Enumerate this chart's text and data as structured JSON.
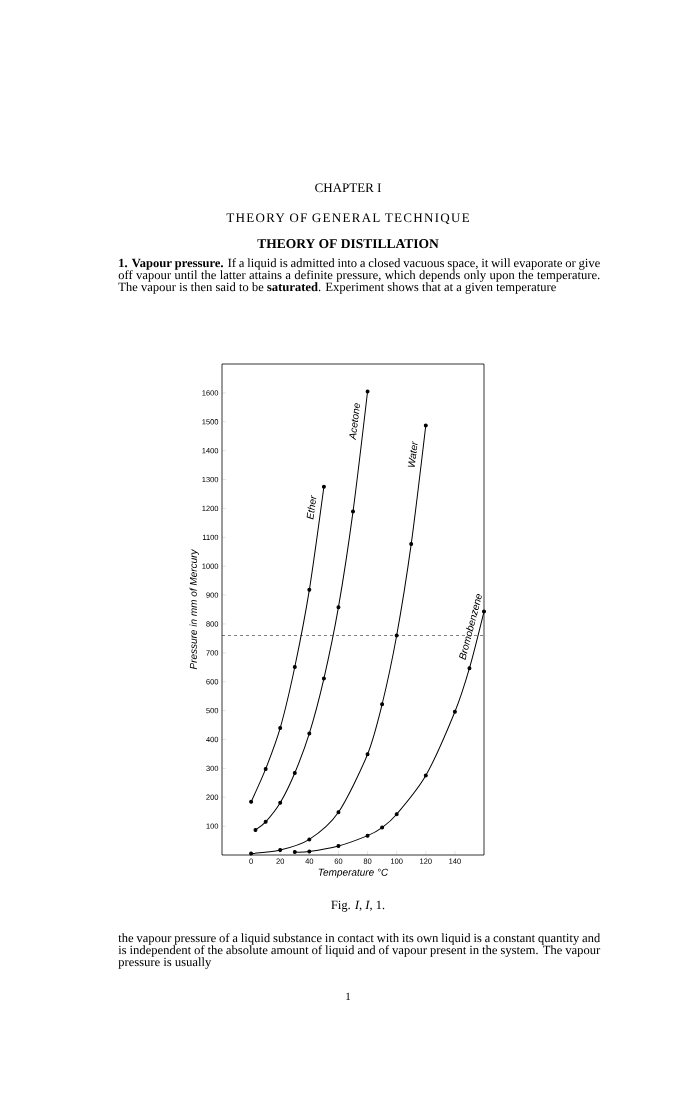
{
  "chart_data": {
    "type": "line",
    "title": "CHAPTER I",
    "subtitle": "THEORY OF GENERAL TECHNIQUE",
    "annotations": [
      "THEORY OF DISTILLATION",
      "**1. Vapour pressure.** If a liquid is admitted into a closed vacuous space, it will evaporate or give off vapour until the latter attains a definite pressure, which depends only upon the temperature. The vapour is then said to be **saturated**. Experiment shows that at a given temperature",
      "Fig. *I*, *I*, 1.",
      "the vapour pressure of a liquid substance in contact with its own liquid is a constant quantity and is independent of the absolute amount of liquid and of vapour present in the system. The vapour pressure is usually",
      "1"
    ],
    "xlabel": "Temperature °C",
    "ylabel": "Pressure in mm of Mercury",
    "xlim": [
      -20,
      160
    ],
    "ylim": [
      0,
      1700
    ],
    "xticks": [
      0,
      20,
      40,
      60,
      80,
      100,
      120,
      140
    ],
    "yticks": [
      100,
      200,
      300,
      400,
      500,
      600,
      700,
      800,
      900,
      1000,
      1100,
      1200,
      1300,
      1400,
      1500,
      1600
    ],
    "marker": "circle",
    "line_style": "solid",
    "ref_lines": [
      {
        "axis": "y",
        "value": 760,
        "line_style": "dashed",
        "color": "#000000"
      }
    ],
    "series": [
      {
        "name": "Ether",
        "color": "#000000",
        "x": [
          0,
          10,
          20,
          30,
          40,
          50
        ],
        "values": [
          184,
          298,
          440,
          651,
          918,
          1275
        ]
      },
      {
        "name": "Acetone",
        "color": "#000000",
        "x": [
          3,
          10,
          20,
          30,
          40,
          50,
          60,
          70,
          80
        ],
        "values": [
          87,
          115,
          181,
          284,
          421,
          611,
          858,
          1189,
          1605
        ]
      },
      {
        "name": "Water",
        "color": "#000000",
        "x": [
          0,
          20,
          40,
          60,
          80,
          90,
          100,
          110,
          120
        ],
        "values": [
          5,
          17,
          54,
          148,
          349,
          522,
          760,
          1077,
          1487
        ]
      },
      {
        "name": "Bromobenzene",
        "color": "#000000",
        "x": [
          30,
          40,
          60,
          80,
          90,
          100,
          120,
          140,
          150,
          160
        ],
        "values": [
          10,
          12,
          31,
          67,
          95,
          141,
          275,
          496,
          647,
          843
        ]
      }
    ]
  }
}
